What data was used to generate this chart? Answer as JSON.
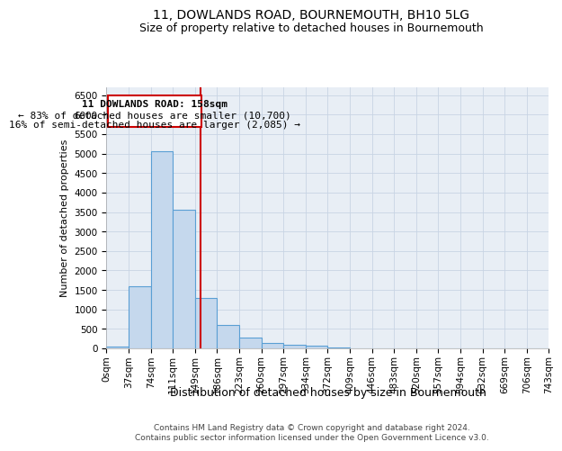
{
  "title": "11, DOWLANDS ROAD, BOURNEMOUTH, BH10 5LG",
  "subtitle": "Size of property relative to detached houses in Bournemouth",
  "xlabel": "Distribution of detached houses by size in Bournemouth",
  "ylabel": "Number of detached properties",
  "footer_lines": [
    "Contains HM Land Registry data © Crown copyright and database right 2024.",
    "Contains public sector information licensed under the Open Government Licence v3.0."
  ],
  "bin_labels": [
    "0sqm",
    "37sqm",
    "74sqm",
    "111sqm",
    "149sqm",
    "186sqm",
    "223sqm",
    "260sqm",
    "297sqm",
    "334sqm",
    "372sqm",
    "409sqm",
    "446sqm",
    "483sqm",
    "520sqm",
    "557sqm",
    "594sqm",
    "632sqm",
    "669sqm",
    "706sqm",
    "743sqm"
  ],
  "bar_values": [
    50,
    1600,
    5050,
    3550,
    1300,
    600,
    270,
    130,
    100,
    80,
    30,
    10,
    5,
    2,
    1,
    0,
    0,
    0,
    0,
    0
  ],
  "bar_color": "#c5d8ed",
  "bar_edge_color": "#5a9fd4",
  "bar_edge_width": 0.8,
  "vline_color": "#cc0000",
  "annotation_line1": "11 DOWLANDS ROAD: 158sqm",
  "annotation_line2": "← 83% of detached houses are smaller (10,700)",
  "annotation_line3": "16% of semi-detached houses are larger (2,085) →",
  "annotation_box_color": "#cc0000",
  "ylim": [
    0,
    6700
  ],
  "yticks": [
    0,
    500,
    1000,
    1500,
    2000,
    2500,
    3000,
    3500,
    4000,
    4500,
    5000,
    5500,
    6000,
    6500
  ],
  "title_fontsize": 10,
  "subtitle_fontsize": 9,
  "xlabel_fontsize": 9,
  "ylabel_fontsize": 8,
  "tick_fontsize": 7.5,
  "annotation_fontsize": 8,
  "background_color": "#ffffff",
  "axes_bg_color": "#e8eef5",
  "grid_color": "#c8d4e4",
  "num_bins": 20
}
